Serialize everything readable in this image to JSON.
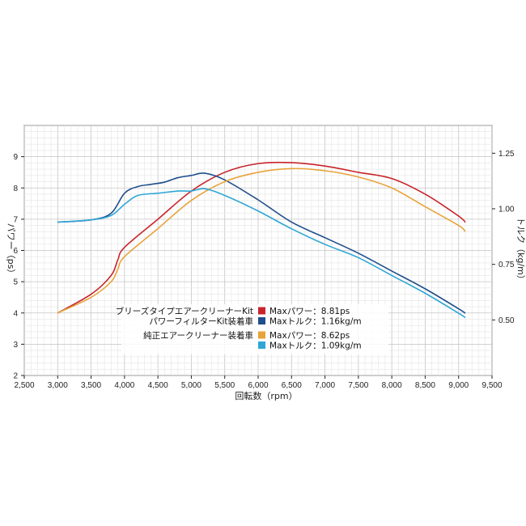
{
  "chart_data": {
    "type": "line",
    "xlabel": "回転数（rpm）",
    "ylabel_left": "パワー（ps）",
    "ylabel_right": "トルク（kg/m）",
    "xlim": [
      2500,
      9500
    ],
    "ylim_left": [
      2,
      10
    ],
    "ylim_right": [
      0.25,
      1.375
    ],
    "x_ticks": [
      2500,
      3000,
      3500,
      4000,
      4500,
      5000,
      5500,
      6000,
      6500,
      7000,
      7500,
      8000,
      8500,
      9000,
      9500
    ],
    "x_tick_labels": [
      "2,500",
      "3,000",
      "3,500",
      "4,000",
      "4,500",
      "5,000",
      "5,500",
      "6,000",
      "6,500",
      "7,000",
      "7,500",
      "8,000",
      "8,500",
      "9,000",
      "9,500"
    ],
    "y_left_ticks": [
      2,
      3,
      4,
      5,
      6,
      7,
      8,
      9
    ],
    "y_left_tick_labels": [
      "2",
      "3",
      "4",
      "5",
      "6",
      "7",
      "8",
      "9"
    ],
    "y_right_ticks": [
      0.5,
      0.75,
      1.0,
      1.25
    ],
    "y_right_tick_labels": [
      "0.50",
      "0.75",
      "1.00",
      "1.25"
    ],
    "grid": true,
    "series": [
      {
        "name": "Maxパワー：8.81ps",
        "axis": "left",
        "color": "#c8242b",
        "x": [
          3000,
          3500,
          3800,
          3900,
          4000,
          4500,
          5000,
          5500,
          6000,
          6500,
          7000,
          7500,
          8000,
          8500,
          9000,
          9100
        ],
        "y": [
          4.0,
          4.6,
          5.2,
          5.7,
          6.1,
          7.0,
          7.9,
          8.5,
          8.78,
          8.81,
          8.7,
          8.5,
          8.3,
          7.8,
          7.1,
          6.9
        ]
      },
      {
        "name": "Maxトルク：1.16kg/m",
        "axis": "right",
        "color": "#1f4e8c",
        "x": [
          3000,
          3500,
          3800,
          4000,
          4200,
          4400,
          4600,
          4800,
          5000,
          5200,
          5500,
          6000,
          6500,
          7000,
          7500,
          8000,
          8500,
          9000,
          9100
        ],
        "y": [
          0.94,
          0.95,
          0.98,
          1.07,
          1.1,
          1.11,
          1.12,
          1.14,
          1.15,
          1.16,
          1.13,
          1.04,
          0.94,
          0.87,
          0.8,
          0.72,
          0.64,
          0.55,
          0.53
        ]
      },
      {
        "name": "Maxパワー：8.62ps",
        "axis": "left",
        "color": "#e8a33a",
        "x": [
          3000,
          3500,
          3800,
          3900,
          4000,
          4500,
          5000,
          5500,
          6000,
          6500,
          7000,
          7500,
          8000,
          8500,
          9000,
          9100
        ],
        "y": [
          4.0,
          4.5,
          5.0,
          5.4,
          5.8,
          6.7,
          7.6,
          8.2,
          8.5,
          8.62,
          8.55,
          8.35,
          8.0,
          7.4,
          6.8,
          6.6
        ]
      },
      {
        "name": "Maxトルク：1.09kg/m",
        "axis": "right",
        "color": "#2fa6d6",
        "x": [
          3000,
          3500,
          3800,
          4000,
          4200,
          4500,
          4800,
          5000,
          5200,
          5500,
          6000,
          6500,
          7000,
          7500,
          8000,
          8500,
          9000,
          9100
        ],
        "y": [
          0.94,
          0.95,
          0.97,
          1.02,
          1.06,
          1.07,
          1.08,
          1.08,
          1.09,
          1.06,
          0.99,
          0.91,
          0.84,
          0.78,
          0.7,
          0.62,
          0.53,
          0.51
        ]
      }
    ],
    "legend": {
      "placement": "bottom-left",
      "groups": [
        {
          "label_lines": [
            "ブリーズタイプエアークリーナーKit",
            "パワーフィルターKit装着車"
          ],
          "entries": [
            {
              "text": "Maxパワー：8.81ps",
              "color": "#c8242b"
            },
            {
              "text": "Maxトルク：1.16kg/m",
              "color": "#1f4e8c"
            }
          ]
        },
        {
          "label_lines": [
            "純正エアークリーナー装着車"
          ],
          "entries": [
            {
              "text": "Maxパワー：8.62ps",
              "color": "#e8a33a"
            },
            {
              "text": "Maxトルク：1.09kg/m",
              "color": "#2fa6d6"
            }
          ]
        }
      ]
    }
  }
}
